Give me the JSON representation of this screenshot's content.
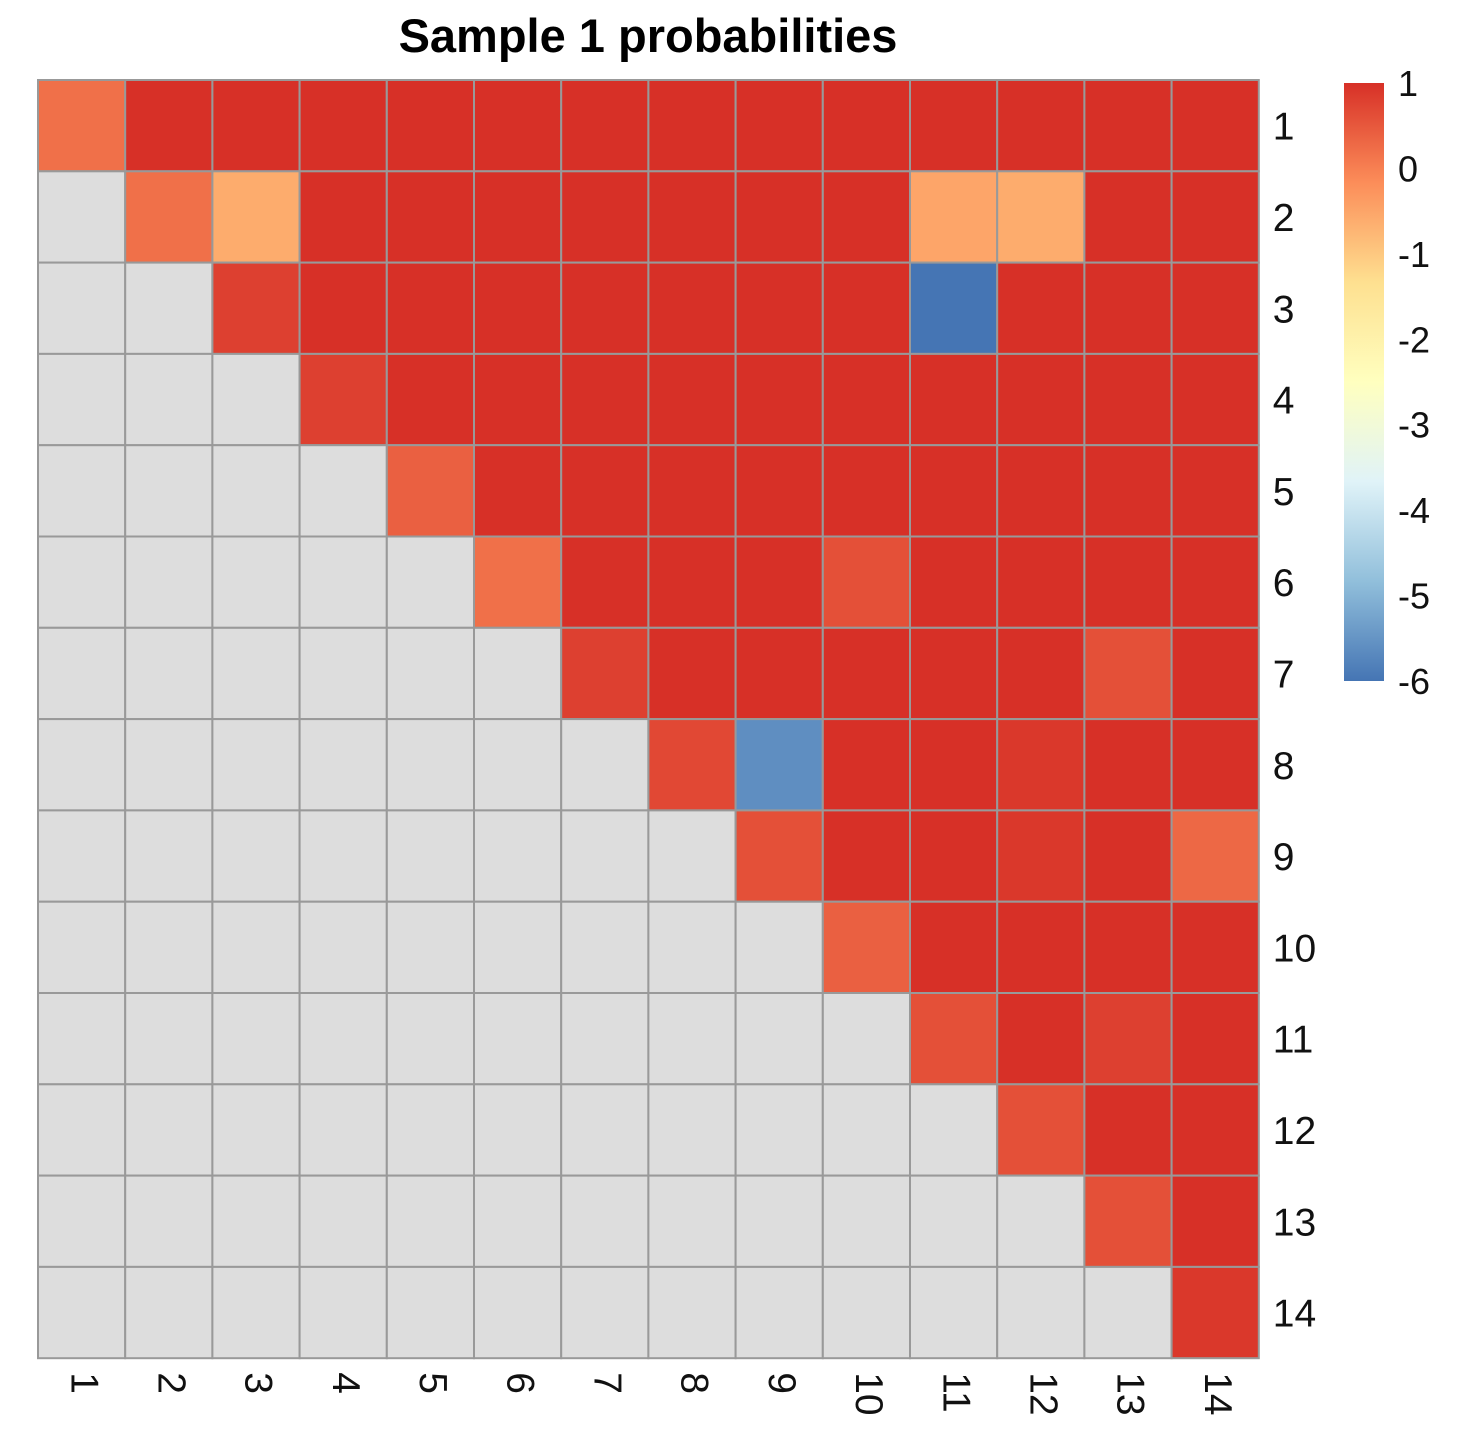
{
  "chart_data": {
    "type": "heatmap",
    "title": "Sample 1 probabilities",
    "rows": [
      "1",
      "2",
      "3",
      "4",
      "5",
      "6",
      "7",
      "8",
      "9",
      "10",
      "11",
      "12",
      "13",
      "14"
    ],
    "columns": [
      "1",
      "2",
      "3",
      "4",
      "5",
      "6",
      "7",
      "8",
      "9",
      "10",
      "11",
      "12",
      "13",
      "14"
    ],
    "values": [
      [
        0.2,
        1,
        1,
        1,
        1,
        1,
        1,
        1,
        1,
        1,
        1,
        1,
        1,
        1
      ],
      [
        null,
        0.2,
        -0.6,
        1,
        1,
        1,
        1,
        1,
        1,
        1,
        -0.5,
        -0.6,
        1,
        1
      ],
      [
        null,
        null,
        0.8,
        1,
        1,
        1,
        1,
        1,
        1,
        1,
        -6,
        1,
        1,
        1
      ],
      [
        null,
        null,
        null,
        0.8,
        1,
        1,
        1,
        1,
        1,
        1,
        1,
        1,
        1,
        1
      ],
      [
        null,
        null,
        null,
        null,
        0.4,
        1,
        1,
        1,
        1,
        1,
        1,
        1,
        1,
        1
      ],
      [
        null,
        null,
        null,
        null,
        null,
        0.2,
        1,
        1,
        1,
        0.6,
        1,
        1,
        1,
        1
      ],
      [
        null,
        null,
        null,
        null,
        null,
        null,
        0.8,
        1,
        1,
        1,
        1,
        1,
        0.6,
        1
      ],
      [
        null,
        null,
        null,
        null,
        null,
        null,
        null,
        0.7,
        -5.6,
        1,
        1,
        0.9,
        1,
        1
      ],
      [
        null,
        null,
        null,
        null,
        null,
        null,
        null,
        null,
        0.6,
        1,
        1,
        0.9,
        1,
        0.3
      ],
      [
        null,
        null,
        null,
        null,
        null,
        null,
        null,
        null,
        null,
        0.4,
        1,
        1,
        1,
        1
      ],
      [
        null,
        null,
        null,
        null,
        null,
        null,
        null,
        null,
        null,
        null,
        0.6,
        1,
        0.8,
        1
      ],
      [
        null,
        null,
        null,
        null,
        null,
        null,
        null,
        null,
        null,
        null,
        null,
        0.6,
        1,
        1
      ],
      [
        null,
        null,
        null,
        null,
        null,
        null,
        null,
        null,
        null,
        null,
        null,
        null,
        0.6,
        1
      ],
      [
        null,
        null,
        null,
        null,
        null,
        null,
        null,
        null,
        null,
        null,
        null,
        null,
        null,
        0.9
      ]
    ],
    "legend": {
      "ticks": [
        "1",
        "0",
        "-1",
        "-2",
        "-3",
        "-4",
        "-5",
        "-6"
      ],
      "range": [
        -6,
        1
      ],
      "placement": "right"
    },
    "colorscale": [
      "#4575b4",
      "#91bfdb",
      "#e0f3f8",
      "#ffffbf",
      "#fee090",
      "#fc8d59",
      "#d73027"
    ],
    "na_color": "#dddddd",
    "gridline_color": "#999999"
  }
}
